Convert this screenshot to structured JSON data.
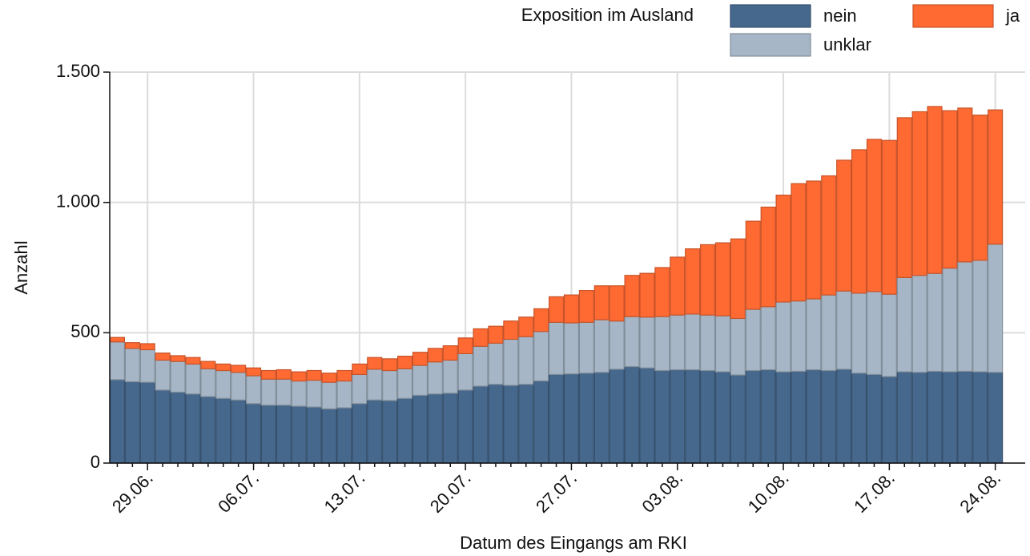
{
  "chart_data": {
    "type": "stacked_bar",
    "x_label": "Datum des Eingangs am RKI",
    "y_label": "Anzahl",
    "legend_title": "Exposition im Ausland",
    "categories": [
      null,
      null,
      "29.06.",
      null,
      null,
      null,
      null,
      null,
      null,
      "06.07.",
      null,
      null,
      null,
      null,
      null,
      null,
      "13.07.",
      null,
      null,
      null,
      null,
      null,
      null,
      "20.07.",
      null,
      null,
      null,
      null,
      null,
      null,
      "27.07.",
      null,
      null,
      null,
      null,
      null,
      null,
      "03.08.",
      null,
      null,
      null,
      null,
      null,
      null,
      "10.08.",
      null,
      null,
      null,
      null,
      null,
      null,
      "17.08.",
      null,
      null,
      null,
      null,
      null,
      null,
      "24.08."
    ],
    "series": [
      {
        "name": "nein",
        "color": "#46688c",
        "values": [
          320,
          312,
          310,
          280,
          272,
          265,
          255,
          248,
          242,
          228,
          222,
          222,
          218,
          215,
          208,
          212,
          228,
          242,
          240,
          248,
          260,
          265,
          268,
          280,
          295,
          302,
          298,
          302,
          315,
          340,
          342,
          345,
          348,
          360,
          370,
          365,
          355,
          358,
          358,
          355,
          350,
          338,
          355,
          358,
          350,
          352,
          358,
          355,
          360,
          345,
          340,
          332,
          350,
          348,
          352,
          350,
          352,
          350,
          348
        ]
      },
      {
        "name": "unklar",
        "color": "#a6b6c6",
        "values": [
          145,
          128,
          125,
          115,
          118,
          115,
          107,
          107,
          106,
          107,
          100,
          100,
          97,
          103,
          102,
          103,
          112,
          118,
          115,
          114,
          115,
          123,
          127,
          140,
          153,
          158,
          177,
          183,
          190,
          200,
          196,
          195,
          202,
          185,
          192,
          195,
          207,
          210,
          214,
          213,
          215,
          217,
          235,
          242,
          268,
          270,
          272,
          290,
          300,
          307,
          318,
          316,
          362,
          372,
          376,
          398,
          420,
          428,
          492
        ]
      },
      {
        "name": "ja",
        "color": "#ff6a33",
        "values": [
          17,
          22,
          23,
          27,
          22,
          25,
          28,
          25,
          27,
          30,
          33,
          36,
          35,
          37,
          35,
          40,
          40,
          45,
          45,
          48,
          50,
          52,
          55,
          60,
          67,
          65,
          70,
          75,
          87,
          98,
          107,
          122,
          130,
          135,
          158,
          168,
          188,
          222,
          250,
          270,
          280,
          305,
          338,
          382,
          410,
          450,
          452,
          457,
          502,
          550,
          584,
          590,
          613,
          628,
          640,
          604,
          590,
          557,
          515
        ]
      }
    ],
    "ylim": [
      0,
      1500
    ],
    "yticks": [
      0,
      500,
      {
        "value": 1000,
        "label": "1.000"
      },
      {
        "value": 1500,
        "label": "1.500"
      }
    ],
    "grid": true
  }
}
